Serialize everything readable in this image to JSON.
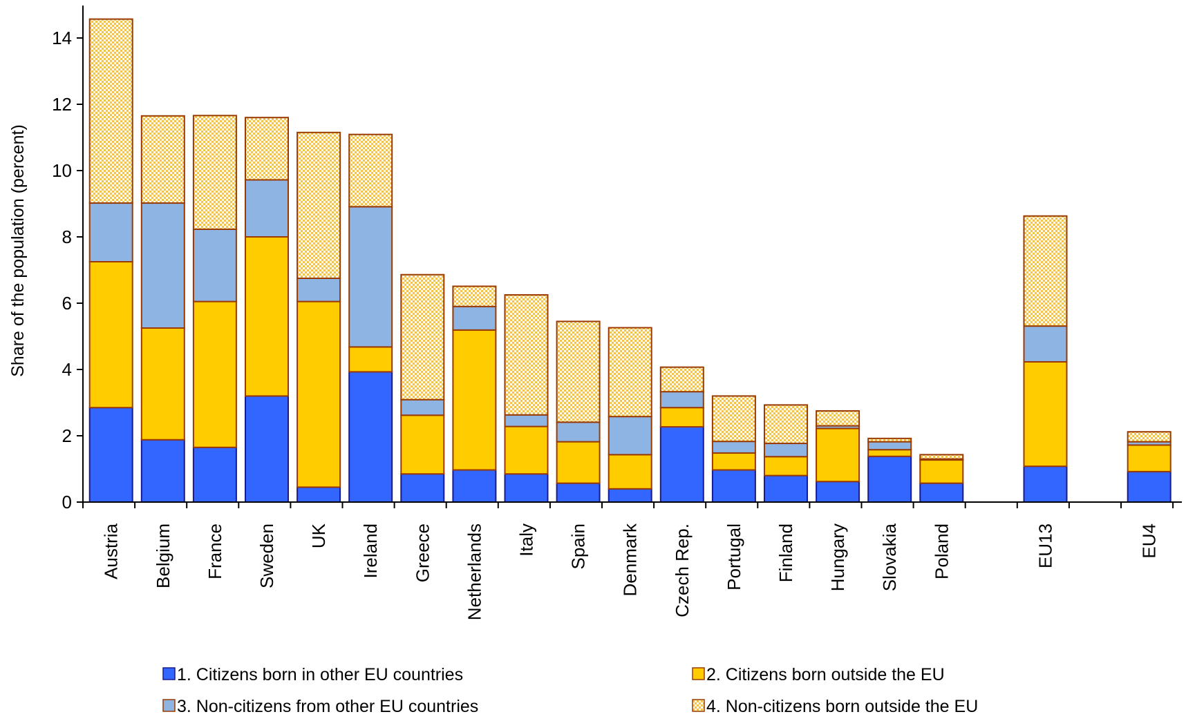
{
  "chart_data": {
    "type": "bar",
    "stacked": true,
    "title": "",
    "xlabel": "",
    "ylabel": "Share of the population (percent)",
    "ylim": [
      0,
      15
    ],
    "yticks": [
      0,
      2,
      4,
      6,
      8,
      10,
      12,
      14
    ],
    "grid": false,
    "legend_position": "bottom",
    "categories": [
      "Austria",
      "Belgium",
      "France",
      "Sweden",
      "UK",
      "Ireland",
      "Greece",
      "Netherlands",
      "Italy",
      "Spain",
      "Denmark",
      "Czech Rep.",
      "Portugal",
      "Finland",
      "Hungary",
      "Slovakia",
      "Poland",
      "EU13",
      "EU4"
    ],
    "series": [
      {
        "name": "1. Citizens born in other EU countries",
        "color": "#3366FF",
        "pattern": "solid",
        "values": [
          2.85,
          1.88,
          1.65,
          3.2,
          0.45,
          3.93,
          0.85,
          0.97,
          0.85,
          0.57,
          0.4,
          2.27,
          0.97,
          0.8,
          0.62,
          1.38,
          0.57,
          1.08,
          0.92
        ]
      },
      {
        "name": "2. Citizens born outside the EU",
        "color": "#FFCC00",
        "pattern": "solid",
        "values": [
          4.4,
          3.37,
          4.4,
          4.8,
          5.6,
          0.75,
          1.77,
          4.22,
          1.43,
          1.25,
          1.03,
          0.58,
          0.51,
          0.57,
          1.6,
          0.2,
          0.7,
          3.15,
          0.8
        ]
      },
      {
        "name": "3. Non-citizens from other EU countries",
        "color": "#8EB4E3",
        "pattern": "solid",
        "values": [
          1.77,
          3.77,
          2.18,
          1.72,
          0.7,
          4.23,
          0.47,
          0.71,
          0.35,
          0.59,
          1.15,
          0.48,
          0.35,
          0.4,
          0.08,
          0.24,
          0.03,
          1.08,
          0.1
        ]
      },
      {
        "name": "4. Non-citizens born outside the EU",
        "color": "#FFE699",
        "pattern": "checker",
        "values": [
          5.55,
          2.63,
          3.43,
          1.88,
          4.4,
          2.18,
          3.77,
          0.61,
          3.62,
          3.04,
          2.68,
          0.74,
          1.37,
          1.16,
          0.45,
          0.1,
          0.13,
          3.32,
          0.3
        ]
      }
    ]
  }
}
